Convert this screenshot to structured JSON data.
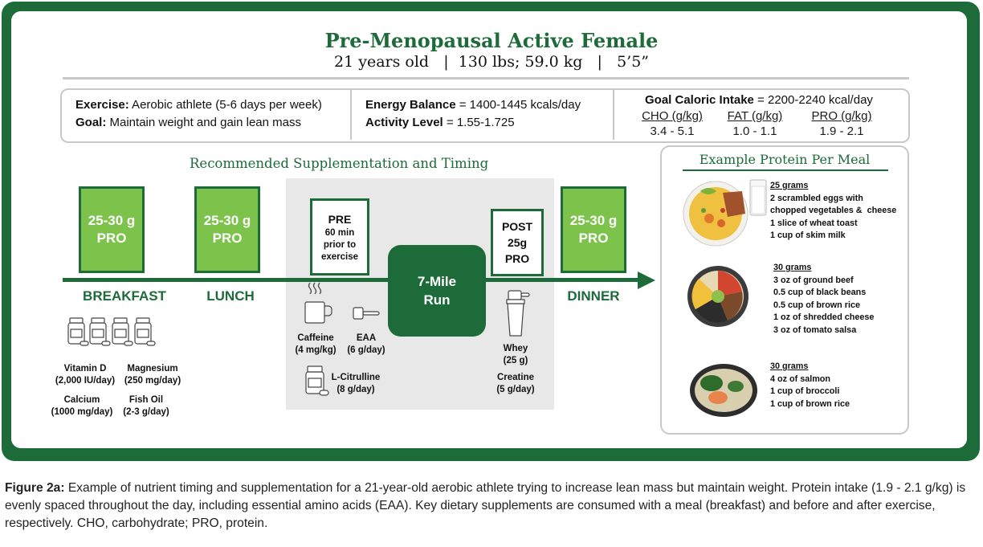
{
  "header": {
    "title": "Pre-Menopausal Active Female",
    "subtitle": "21 years old   |  130 lbs; 59.0 kg   |   5’5”"
  },
  "info": {
    "exercise_label": "Exercise:",
    "exercise_value": " Aerobic athlete (5-6 days per week)",
    "goal_label": "Goal:",
    "goal_value": " Maintain weight and gain lean mass",
    "energy_label": "Energy Balance",
    "energy_value": " = 1400-1445 kcals/day",
    "activity_label": "Activity Level",
    "activity_value": " = 1.55-1.725",
    "caloric_label": "Goal Caloric Intake",
    "caloric_value": " = 2200-2240 kcal/day",
    "macros": [
      {
        "label": "CHO (g/kg)",
        "value": "3.4 - 5.1"
      },
      {
        "label": "FAT (g/kg)",
        "value": "1.0 - 1.1"
      },
      {
        "label": "PRO (g/kg)",
        "value": "1.9 - 2.1"
      }
    ]
  },
  "timeline": {
    "title": "Recommended Supplementation and Timing",
    "meals": [
      {
        "line1": "25-30 g",
        "line2": "PRO",
        "label": "BREAKFAST"
      },
      {
        "line1": "25-30 g",
        "line2": "PRO",
        "label": "LUNCH"
      },
      {
        "line1": "25-30 g",
        "line2": "PRO",
        "label": "DINNER"
      }
    ],
    "pre": {
      "title": "PRE",
      "line1": "60 min",
      "line2": "prior to",
      "line3": "exercise"
    },
    "post": {
      "title": "POST",
      "line1": "25g",
      "line2": "PRO"
    },
    "run": {
      "line1": "7-Mile",
      "line2": "Run"
    },
    "breakfast_supplements": [
      {
        "name": "Vitamin D",
        "dose": "(2,000 IU/day)"
      },
      {
        "name": "Magnesium",
        "dose": "(250 mg/day)"
      },
      {
        "name": "Calcium",
        "dose": "(1000 mg/day)"
      },
      {
        "name": "Fish Oil",
        "dose": "(2-3 g/day)"
      }
    ],
    "pre_supplements": [
      {
        "name": "Caffeine",
        "dose": "(4 mg/kg)"
      },
      {
        "name": "EAA",
        "dose": "(6 g/day)"
      },
      {
        "name": "L-Citrulline",
        "dose": "(8 g/day)"
      }
    ],
    "post_supplements": [
      {
        "name": "Whey",
        "dose": "(25 g)"
      },
      {
        "name": "Creatine",
        "dose": "(5 g/day)"
      }
    ]
  },
  "protein_panel": {
    "title": "Example Protein Per Meal",
    "meals": [
      {
        "grams": "25 grams",
        "items": [
          "2 scrambled eggs with",
          "chopped vegetables &  cheese",
          "1 slice of wheat toast",
          "1 cup of skim milk"
        ]
      },
      {
        "grams": "30 grams",
        "items": [
          "3 oz of ground beef",
          "0.5 cup of black beans",
          "0.5 cup of brown rice",
          "1 oz of shredded cheese",
          "3 oz of tomato salsa"
        ]
      },
      {
        "grams": "30 grams",
        "items": [
          "4 oz of salmon",
          "1 cup of broccoli",
          "1 cup of brown rice"
        ]
      }
    ]
  },
  "caption": {
    "label": "Figure 2a:",
    "text": " Example of nutrient timing and supplementation for a 21-year-old aerobic athlete trying to increase lean mass but maintain weight. Protein intake (1.9 - 2.1 g/kg) is evenly spaced throughout the day, including essential amino acids (EAA). Key dietary supplements are consumed with a meal (breakfast) and before and after exercise, respectively. CHO, carbohydrate; PRO, protein."
  },
  "colors": {
    "brand_green": "#1c6b39",
    "light_green": "#7dc24b",
    "gray_panel": "#e8e8e8"
  }
}
